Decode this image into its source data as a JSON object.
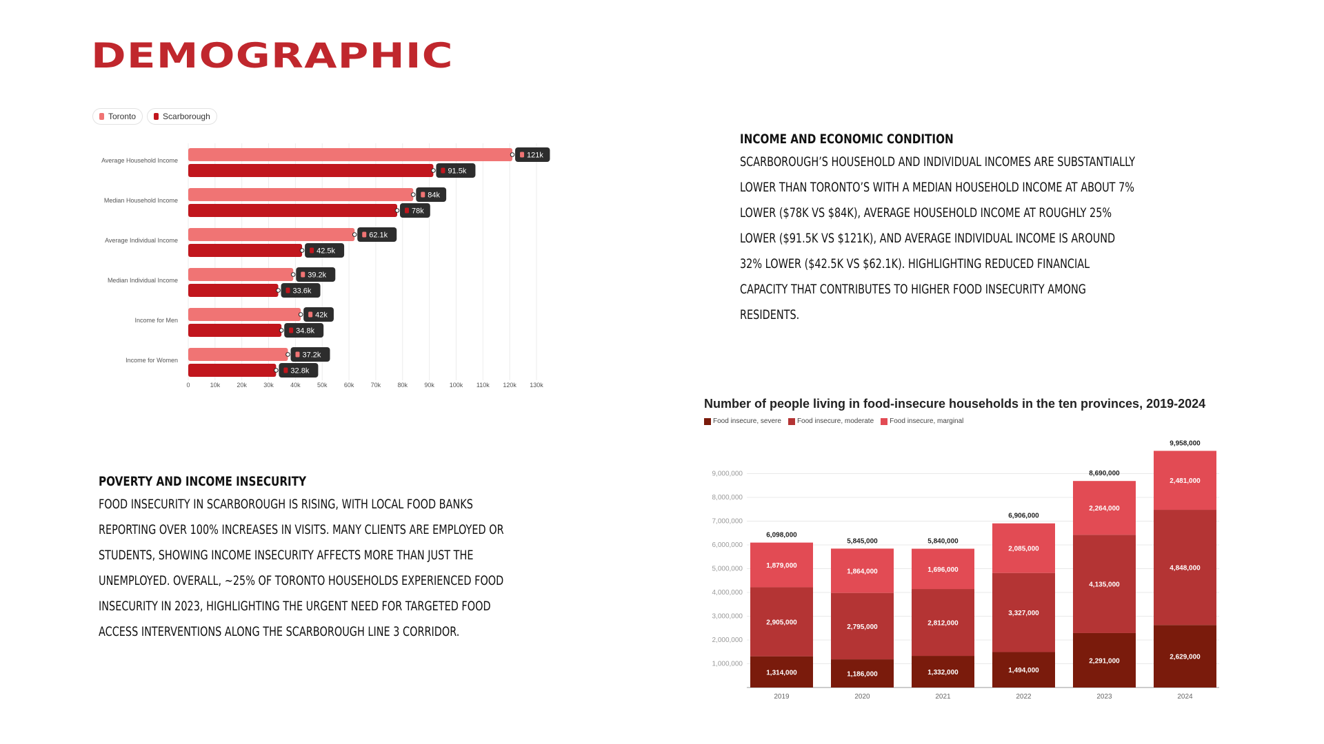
{
  "page": {
    "title": "DEMOGRAPHIC"
  },
  "income_section": {
    "heading": "Income and Economic Condition",
    "body": "Scarborough’s household and individual incomes are substantially lower than Toronto’s  with a median household income at about 7% lower ($78K vs $84K), average household income at roughly 25% lower ($91.5K vs $121K), and average individual income is around 32% lower ($42.5K vs $62.1K).  Highlighting reduced financial capacity that contributes to higher food insecurity among residents."
  },
  "poverty_section": {
    "heading": "Poverty and Income Insecurity",
    "body": "Food insecurity in Scarborough is rising, with local food banks reporting over 100% increases in visits. Many clients are employed or students, showing income insecurity affects more than just the unemployed. Overall, ~25% of Toronto households experienced food insecurity in 2023, highlighting the urgent need for targeted food access interventions along the Scarborough Line 3 corridor."
  },
  "chart_data": [
    {
      "type": "bar",
      "orientation": "horizontal",
      "title": "",
      "categories": [
        "Average Household Income",
        "Median Household Income",
        "Average Individual Income",
        "Median Individual Income",
        "Income for Men",
        "Income for Women"
      ],
      "series": [
        {
          "name": "Toronto",
          "color": "#f07474",
          "values": [
            121000,
            84000,
            62100,
            39200,
            42000,
            37200
          ],
          "labels": [
            "121k",
            "84k",
            "62.1k",
            "39.2k",
            "42k",
            "37.2k"
          ]
        },
        {
          "name": "Scarborough",
          "color": "#c1161d",
          "values": [
            91500,
            78000,
            42500,
            33600,
            34800,
            32800
          ],
          "labels": [
            "91.5k",
            "78k",
            "42.5k",
            "33.6k",
            "34.8k",
            "32.8k"
          ]
        }
      ],
      "xlim": [
        0,
        130000
      ],
      "xticks": [
        "0",
        "10k",
        "20k",
        "30k",
        "40k",
        "50k",
        "60k",
        "70k",
        "80k",
        "90k",
        "100k",
        "110k",
        "120k",
        "130k"
      ],
      "legend_position": "top-left",
      "grid": true
    },
    {
      "type": "bar",
      "stacked": true,
      "title": "Number of people living in food-insecure households in the ten provinces, 2019-2024",
      "categories": [
        "2019",
        "2020",
        "2021",
        "2022",
        "2023",
        "2024"
      ],
      "series": [
        {
          "name": "Food insecure, severe",
          "color": "#7a1b0c",
          "values": [
            1314000,
            1186000,
            1332000,
            1494000,
            2291000,
            2629000
          ]
        },
        {
          "name": "Food insecure, moderate",
          "color": "#b43434",
          "values": [
            2905000,
            2795000,
            2812000,
            3327000,
            4135000,
            4848000
          ]
        },
        {
          "name": "Food insecure, marginal",
          "color": "#e24b54",
          "values": [
            1879000,
            1864000,
            1696000,
            2085000,
            2264000,
            2481000
          ]
        }
      ],
      "totals": [
        6098000,
        5845000,
        5840000,
        6906000,
        8690000,
        9958000
      ],
      "ylim": [
        0,
        10000000
      ],
      "yticks": [
        "1,000,000",
        "2,000,000",
        "3,000,000",
        "4,000,000",
        "5,000,000",
        "6,000,000",
        "7,000,000",
        "8,000,000",
        "9,000,000"
      ],
      "legend_position": "top-left",
      "grid": true
    }
  ]
}
